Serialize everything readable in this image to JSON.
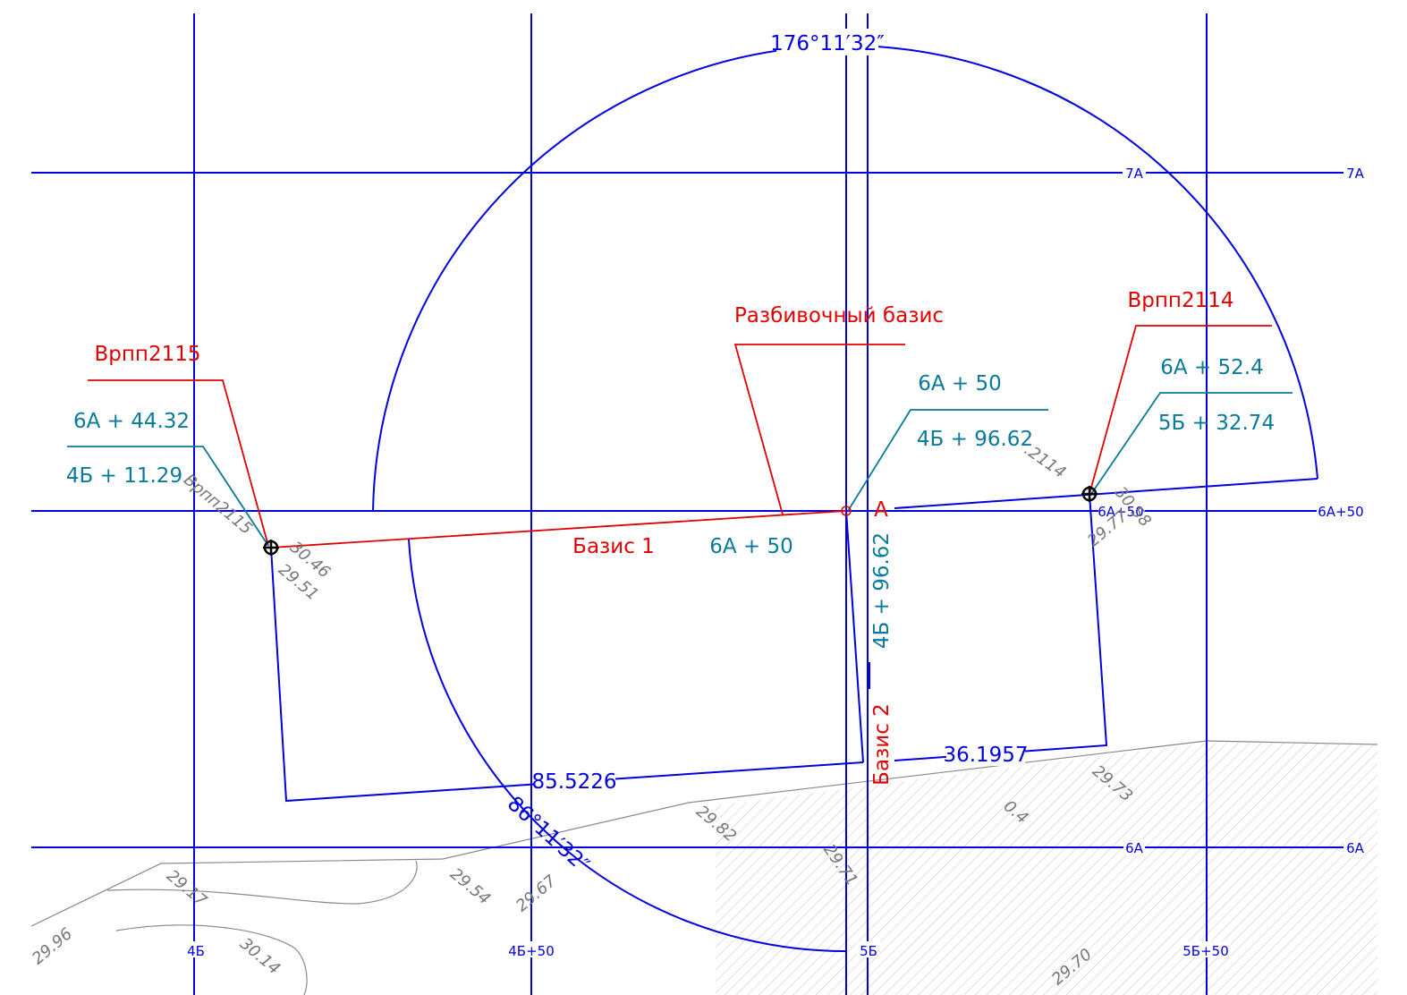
{
  "grid": {
    "rows": [
      "7А",
      "7А",
      "6А+50",
      "6А+50",
      "6А",
      "6А"
    ],
    "columns": [
      "4Б",
      "4Б+50",
      "5Б",
      "5Б+50"
    ]
  },
  "angles": [
    "176°11′32″",
    "86°11′32″"
  ],
  "dimensions": [
    "85.5226",
    "36.1957"
  ],
  "basis": {
    "title": "Разбивочный базис",
    "point": "А",
    "basis1": "Базис 1",
    "basis2": "Базис 2",
    "x": "6А + 50",
    "y": "4Б + 96.62",
    "label_x": "6А + 50",
    "label_y": "4Б + 96.62"
  },
  "points": [
    {
      "name": "Врпп2115",
      "x": "6А + 44.32",
      "y": "4Б + 11.29"
    },
    {
      "name": "Врпп2114",
      "x": "6А + 52.4",
      "y": "5Б + 32.74"
    }
  ],
  "terrain": {
    "labels": [
      "Врпп2115",
      "30.46",
      "29.51",
      ".2114",
      "30.58",
      "29.77",
      "29.73",
      "29.82",
      "29.71",
      "29.54",
      "29.67",
      "29.17",
      "29.96",
      "30.14",
      "29.70",
      "0.4"
    ]
  }
}
